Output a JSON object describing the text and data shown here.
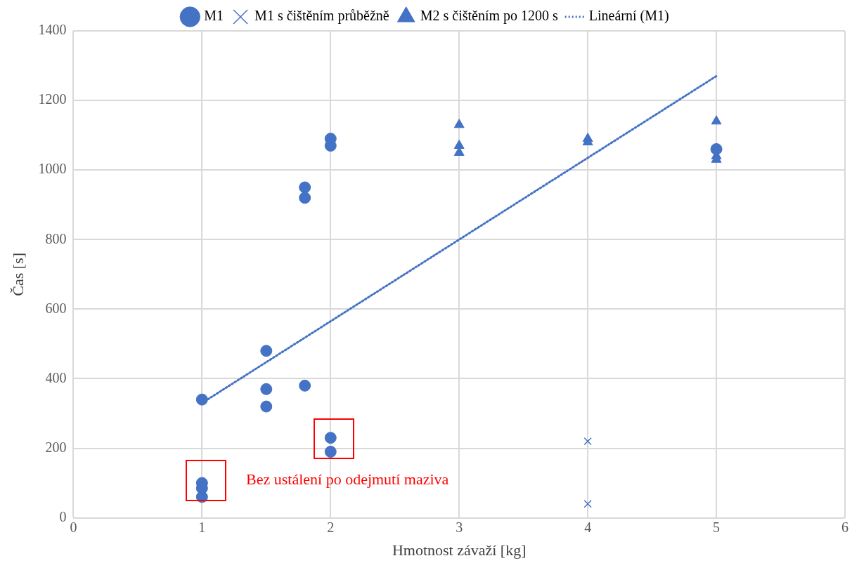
{
  "chart_data": {
    "type": "scatter",
    "xlabel": "Hmotnost závaží [kg]",
    "ylabel": "Čas [s]",
    "xlim": [
      0,
      6
    ],
    "xticks": [
      0,
      1,
      2,
      3,
      4,
      5,
      6
    ],
    "ylim": [
      0,
      1400
    ],
    "yticks": [
      0,
      200,
      400,
      600,
      800,
      1000,
      1200,
      1400
    ],
    "grid": true,
    "legend": "top",
    "series": [
      {
        "name": "M1",
        "color": "#4472c4",
        "marker": "circle",
        "x": [
          1,
          1,
          1,
          1,
          1.5,
          1.5,
          1.5,
          1.8,
          1.8,
          1.8,
          2,
          2,
          2,
          2,
          5
        ],
        "values": [
          340,
          100,
          85,
          60,
          480,
          370,
          320,
          950,
          920,
          380,
          1090,
          1070,
          230,
          190,
          1060
        ]
      },
      {
        "name": "M1 s čištěním průběžně",
        "color": "#4472c4",
        "marker": "cross",
        "x": [
          4,
          4
        ],
        "values": [
          220,
          40
        ]
      },
      {
        "name": "M2 s čištěním po 1200 s",
        "color": "#4472c4",
        "marker": "triangle",
        "x": [
          3,
          3,
          3,
          4,
          4,
          5,
          5,
          5
        ],
        "values": [
          1130,
          1070,
          1050,
          1090,
          1080,
          1140,
          1040,
          1030
        ]
      },
      {
        "name": "Lineární (M1)",
        "type": "line",
        "color": "#4472c4",
        "line_style": "dotted",
        "marker": "none",
        "x": [
          1,
          5
        ],
        "values": [
          330,
          1270
        ]
      }
    ],
    "annotations": [
      "Bez ustálení po odejmutí maziva"
    ]
  }
}
